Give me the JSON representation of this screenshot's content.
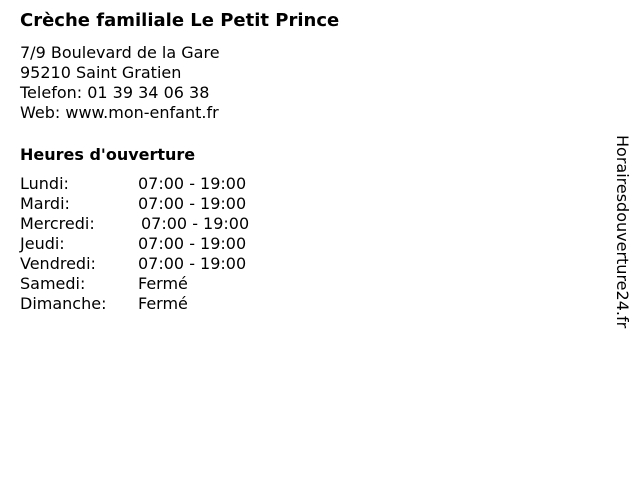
{
  "title": "Crèche familiale Le Petit Prince",
  "address": {
    "street": "7/9 Boulevard de la Gare",
    "city": "95210 Saint Gratien",
    "phone": "Telefon: 01 39 34 06 38",
    "web": "Web: www.mon-enfant.fr"
  },
  "hours_heading": "Heures d'ouverture",
  "hours": [
    {
      "day": "Lundi:",
      "time": "07:00 - 19:00"
    },
    {
      "day": "Mardi:",
      "time": "07:00 - 19:00"
    },
    {
      "day": "Mercredi:",
      "time": "07:00 - 19:00"
    },
    {
      "day": "Jeudi:",
      "time": "07:00 - 19:00"
    },
    {
      "day": "Vendredi:",
      "time": "07:00 - 19:00"
    },
    {
      "day": "Samedi:",
      "time": "Fermé"
    },
    {
      "day": "Dimanche:",
      "time": "Fermé"
    }
  ],
  "side_brand": "Horairesdouverture24.fr"
}
